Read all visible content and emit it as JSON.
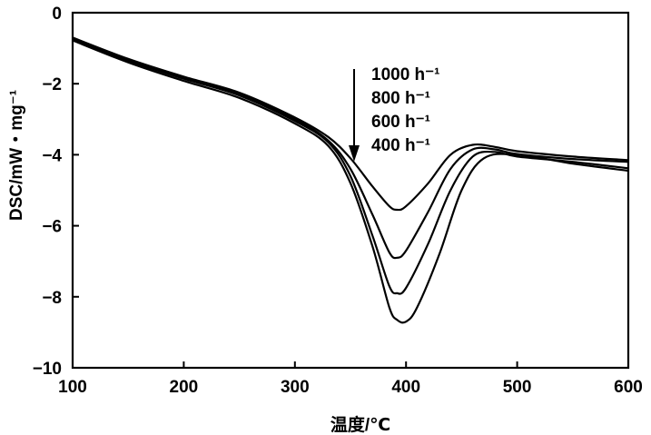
{
  "chart_data": {
    "type": "line",
    "title": "",
    "xlabel": "温度/℃",
    "ylabel": "DSC/mW・mg⁻¹",
    "xlim": [
      100,
      600
    ],
    "ylim": [
      -10,
      0
    ],
    "xticks": [
      100,
      200,
      300,
      400,
      500,
      600
    ],
    "xtick_labels": [
      "100",
      "200",
      "300",
      "400",
      "500",
      "600"
    ],
    "yticks": [
      0,
      -2,
      -4,
      -6,
      -8,
      -10
    ],
    "ytick_labels": [
      "0",
      "−2",
      "−4",
      "−6",
      "−8",
      "−10"
    ],
    "grid": false,
    "legend_position": "top-center",
    "annotation": "downward arrow indicating increasing peak depth from 1000 h⁻¹ to 400 h⁻¹",
    "series": [
      {
        "name": "1000 h⁻¹",
        "x": [
          100,
          150,
          200,
          250,
          300,
          330,
          350,
          370,
          385,
          392,
          400,
          420,
          440,
          460,
          480,
          500,
          550,
          600
        ],
        "y": [
          -0.7,
          -1.3,
          -1.8,
          -2.25,
          -2.95,
          -3.5,
          -4.1,
          -4.9,
          -5.45,
          -5.55,
          -5.45,
          -4.8,
          -4.0,
          -3.72,
          -3.78,
          -3.9,
          -4.05,
          -4.15
        ]
      },
      {
        "name": "800 h⁻¹",
        "x": [
          100,
          150,
          200,
          250,
          300,
          330,
          350,
          370,
          385,
          392,
          400,
          420,
          440,
          460,
          480,
          500,
          550,
          600
        ],
        "y": [
          -0.72,
          -1.32,
          -1.82,
          -2.28,
          -3.0,
          -3.6,
          -4.4,
          -5.7,
          -6.75,
          -6.9,
          -6.7,
          -5.6,
          -4.4,
          -3.85,
          -3.85,
          -3.98,
          -4.12,
          -4.2
        ]
      },
      {
        "name": "600 h⁻¹",
        "x": [
          100,
          150,
          200,
          250,
          300,
          330,
          350,
          370,
          385,
          392,
          400,
          420,
          440,
          460,
          480,
          500,
          550,
          600
        ],
        "y": [
          -0.75,
          -1.35,
          -1.86,
          -2.33,
          -3.05,
          -3.65,
          -4.6,
          -6.3,
          -7.7,
          -7.9,
          -7.75,
          -6.5,
          -5.0,
          -4.05,
          -3.92,
          -4.05,
          -4.2,
          -4.38
        ]
      },
      {
        "name": "400 h⁻¹",
        "x": [
          100,
          150,
          200,
          250,
          300,
          330,
          350,
          370,
          385,
          392,
          400,
          410,
          430,
          450,
          470,
          500,
          550,
          600
        ],
        "y": [
          -0.78,
          -1.4,
          -1.92,
          -2.4,
          -3.12,
          -3.75,
          -4.8,
          -6.6,
          -8.3,
          -8.65,
          -8.7,
          -8.3,
          -6.8,
          -5.0,
          -4.1,
          -4.0,
          -4.25,
          -4.45
        ]
      }
    ]
  }
}
